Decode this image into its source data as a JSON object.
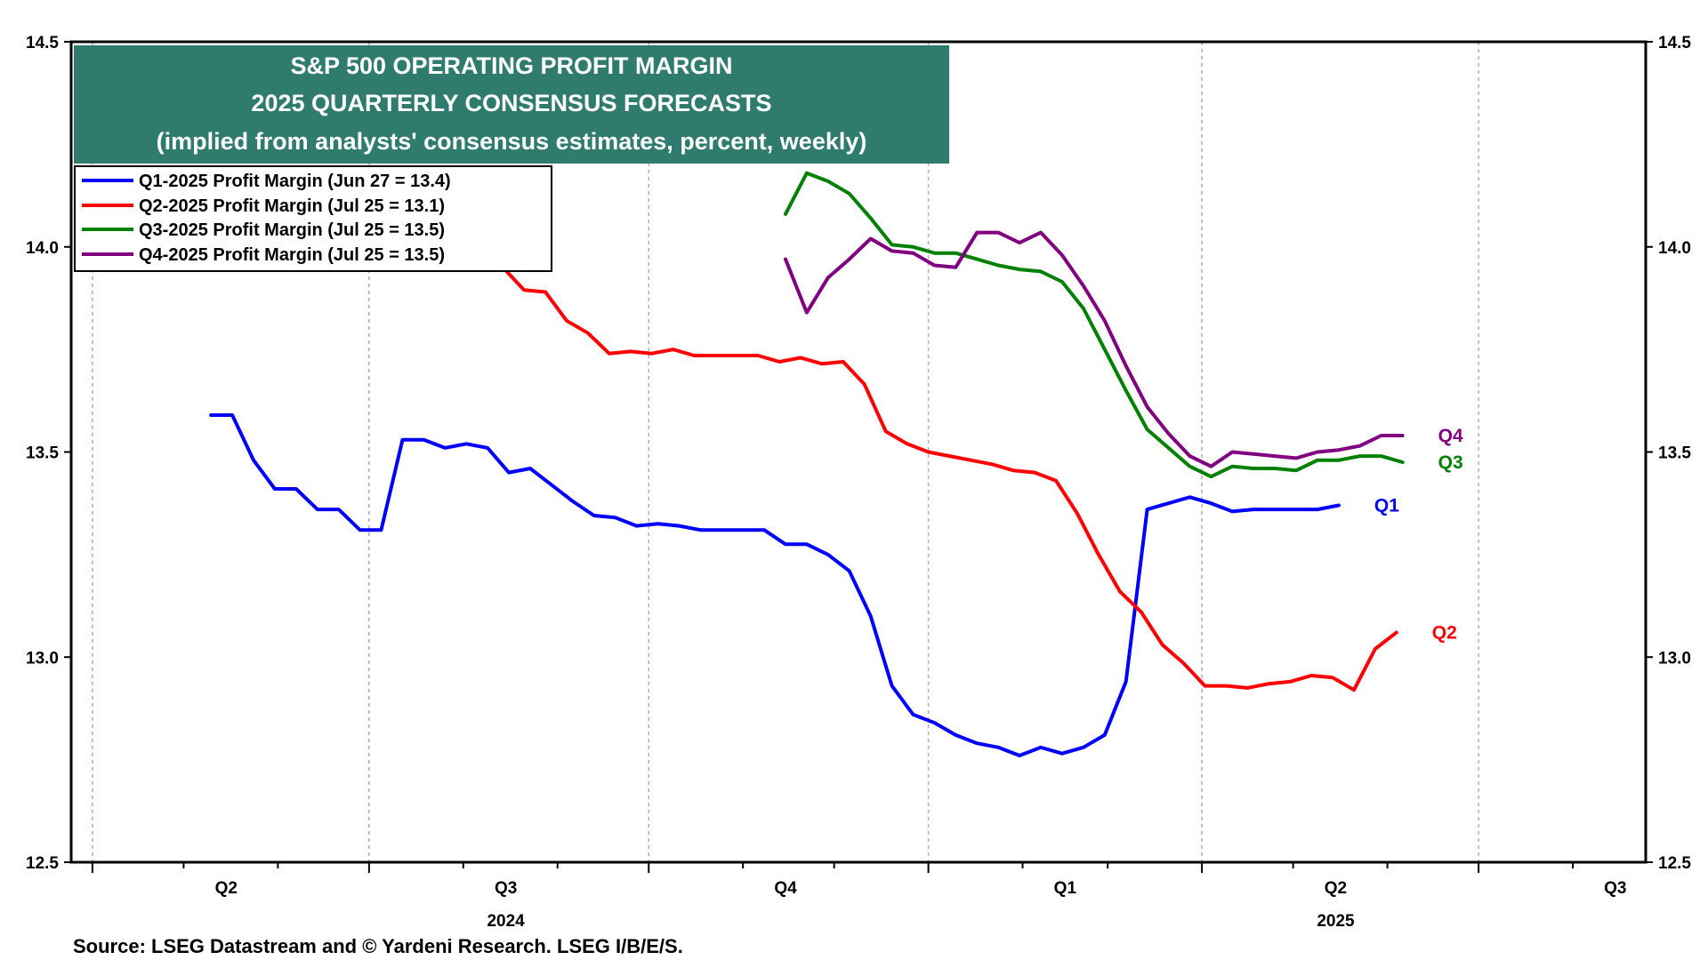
{
  "chart_data": {
    "type": "line",
    "title_lines": [
      "S&P 500 OPERATING PROFIT MARGIN",
      "2025 QUARTERLY CONSENSUS FORECASTS",
      "(implied from analysts' consensus estimates, percent, weekly)"
    ],
    "source": "Source: LSEG Datastream and © Yardeni Research. LSEG I/B/E/S.",
    "ylim": [
      12.5,
      14.5
    ],
    "yticks": [
      "12.5",
      "13.0",
      "13.5",
      "14.0",
      "14.5"
    ],
    "y_axis_both_sides": true,
    "grid": "vertical dashed",
    "legend_placement": "top-left",
    "x_quarter_labels": [
      {
        "label": "Q2",
        "x": "2024-04-01"
      },
      {
        "label": "Q3",
        "x": "2024-07-01"
      },
      {
        "label": "Q4",
        "x": "2024-10-01"
      },
      {
        "label": "Q1",
        "x": "2025-01-01"
      },
      {
        "label": "Q2",
        "x": "2025-04-01"
      },
      {
        "label": "Q3",
        "x": "2025-07-01"
      }
    ],
    "x_year_labels": [
      {
        "label": "2024",
        "x": "2024-07-01"
      },
      {
        "label": "2025",
        "x": "2025-04-01"
      }
    ],
    "x_range": [
      "2024-03-25",
      "2025-08-25"
    ],
    "series": [
      {
        "name": "Q1-2025 Profit Margin (Jun 27 = 13.4)",
        "tag": "Q1",
        "color": "#0000ff",
        "points": [
          [
            "2024-05-10",
            13.59
          ],
          [
            "2024-05-17",
            13.59
          ],
          [
            "2024-05-24",
            13.48
          ],
          [
            "2024-05-31",
            13.41
          ],
          [
            "2024-06-07",
            13.41
          ],
          [
            "2024-06-14",
            13.36
          ],
          [
            "2024-06-21",
            13.36
          ],
          [
            "2024-06-28",
            13.31
          ],
          [
            "2024-07-05",
            13.31
          ],
          [
            "2024-07-12",
            13.53
          ],
          [
            "2024-07-19",
            13.53
          ],
          [
            "2024-07-26",
            13.51
          ],
          [
            "2024-08-02",
            13.52
          ],
          [
            "2024-08-09",
            13.51
          ],
          [
            "2024-08-16",
            13.45
          ],
          [
            "2024-08-23",
            13.46
          ],
          [
            "2024-08-30",
            13.42
          ],
          [
            "2024-09-06",
            13.38
          ],
          [
            "2024-09-13",
            13.345
          ],
          [
            "2024-09-20",
            13.34
          ],
          [
            "2024-09-27",
            13.32
          ],
          [
            "2024-10-04",
            13.325
          ],
          [
            "2024-10-11",
            13.32
          ],
          [
            "2024-10-18",
            13.31
          ],
          [
            "2024-10-25",
            13.31
          ],
          [
            "2024-11-01",
            13.31
          ],
          [
            "2024-11-08",
            13.31
          ],
          [
            "2024-11-15",
            13.275
          ],
          [
            "2024-11-22",
            13.275
          ],
          [
            "2024-11-29",
            13.25
          ],
          [
            "2024-12-06",
            13.21
          ],
          [
            "2024-12-13",
            13.1
          ],
          [
            "2024-12-20",
            12.93
          ],
          [
            "2024-12-27",
            12.86
          ],
          [
            "2025-01-03",
            12.84
          ],
          [
            "2025-01-10",
            12.81
          ],
          [
            "2025-01-17",
            12.79
          ],
          [
            "2025-01-24",
            12.78
          ],
          [
            "2025-01-31",
            12.76
          ],
          [
            "2025-02-07",
            12.78
          ],
          [
            "2025-02-14",
            12.765
          ],
          [
            "2025-02-21",
            12.78
          ],
          [
            "2025-02-28",
            12.81
          ],
          [
            "2025-03-07",
            12.94
          ],
          [
            "2025-03-14",
            13.36
          ],
          [
            "2025-03-21",
            13.375
          ],
          [
            "2025-03-28",
            13.39
          ],
          [
            "2025-04-04",
            13.375
          ],
          [
            "2025-04-11",
            13.355
          ],
          [
            "2025-04-18",
            13.36
          ],
          [
            "2025-04-25",
            13.36
          ],
          [
            "2025-05-02",
            13.36
          ],
          [
            "2025-05-09",
            13.36
          ],
          [
            "2025-05-16",
            13.37
          ]
        ]
      },
      {
        "name": "Q2-2025 Profit Margin (Jul 25 = 13.1)",
        "tag": "Q2",
        "color": "#ff0000",
        "points": [
          [
            "2024-07-24",
            14.06
          ],
          [
            "2024-07-31",
            14.02
          ],
          [
            "2024-08-07",
            13.98
          ],
          [
            "2024-08-14",
            13.95
          ],
          [
            "2024-08-21",
            13.895
          ],
          [
            "2024-08-28",
            13.89
          ],
          [
            "2024-09-04",
            13.82
          ],
          [
            "2024-09-11",
            13.79
          ],
          [
            "2024-09-18",
            13.74
          ],
          [
            "2024-09-25",
            13.745
          ],
          [
            "2024-10-02",
            13.74
          ],
          [
            "2024-10-09",
            13.75
          ],
          [
            "2024-10-16",
            13.735
          ],
          [
            "2024-10-23",
            13.735
          ],
          [
            "2024-10-30",
            13.735
          ],
          [
            "2024-11-06",
            13.735
          ],
          [
            "2024-11-13",
            13.72
          ],
          [
            "2024-11-20",
            13.73
          ],
          [
            "2024-11-27",
            13.715
          ],
          [
            "2024-12-04",
            13.72
          ],
          [
            "2024-12-11",
            13.665
          ],
          [
            "2024-12-18",
            13.55
          ],
          [
            "2024-12-25",
            13.52
          ],
          [
            "2025-01-01",
            13.5
          ],
          [
            "2025-01-08",
            13.49
          ],
          [
            "2025-01-15",
            13.48
          ],
          [
            "2025-01-22",
            13.47
          ],
          [
            "2025-01-29",
            13.455
          ],
          [
            "2025-02-05",
            13.45
          ],
          [
            "2025-02-12",
            13.43
          ],
          [
            "2025-02-19",
            13.35
          ],
          [
            "2025-02-26",
            13.25
          ],
          [
            "2025-03-05",
            13.16
          ],
          [
            "2025-03-12",
            13.11
          ],
          [
            "2025-03-19",
            13.03
          ],
          [
            "2025-03-26",
            12.985
          ],
          [
            "2025-04-02",
            12.93
          ],
          [
            "2025-04-09",
            12.93
          ],
          [
            "2025-04-16",
            12.925
          ],
          [
            "2025-04-23",
            12.935
          ],
          [
            "2025-04-30",
            12.94
          ],
          [
            "2025-05-07",
            12.955
          ],
          [
            "2025-05-14",
            12.95
          ],
          [
            "2025-05-21",
            12.92
          ],
          [
            "2025-05-28",
            13.02
          ],
          [
            "2025-06-04",
            13.06
          ]
        ]
      },
      {
        "name": "Q3-2025 Profit Margin (Jul 25 = 13.5)",
        "tag": "Q3",
        "color": "#008000",
        "points": [
          [
            "2024-11-15",
            14.08
          ],
          [
            "2024-11-22",
            14.18
          ],
          [
            "2024-11-29",
            14.16
          ],
          [
            "2024-12-06",
            14.13
          ],
          [
            "2024-12-13",
            14.07
          ],
          [
            "2024-12-20",
            14.005
          ],
          [
            "2024-12-27",
            14.0
          ],
          [
            "2025-01-03",
            13.985
          ],
          [
            "2025-01-10",
            13.985
          ],
          [
            "2025-01-17",
            13.97
          ],
          [
            "2025-01-24",
            13.955
          ],
          [
            "2025-01-31",
            13.945
          ],
          [
            "2025-02-07",
            13.94
          ],
          [
            "2025-02-14",
            13.915
          ],
          [
            "2025-02-21",
            13.85
          ],
          [
            "2025-02-28",
            13.75
          ],
          [
            "2025-03-07",
            13.65
          ],
          [
            "2025-03-14",
            13.555
          ],
          [
            "2025-03-21",
            13.51
          ],
          [
            "2025-03-28",
            13.465
          ],
          [
            "2025-04-04",
            13.44
          ],
          [
            "2025-04-11",
            13.465
          ],
          [
            "2025-04-18",
            13.46
          ],
          [
            "2025-04-25",
            13.46
          ],
          [
            "2025-05-02",
            13.455
          ],
          [
            "2025-05-09",
            13.48
          ],
          [
            "2025-05-16",
            13.48
          ],
          [
            "2025-05-23",
            13.49
          ],
          [
            "2025-05-30",
            13.49
          ],
          [
            "2025-06-06",
            13.475
          ]
        ]
      },
      {
        "name": "Q4-2025 Profit Margin (Jul 25 = 13.5)",
        "tag": "Q4",
        "color": "#800080",
        "points": [
          [
            "2024-11-15",
            13.97
          ],
          [
            "2024-11-22",
            13.84
          ],
          [
            "2024-11-29",
            13.925
          ],
          [
            "2024-12-06",
            13.97
          ],
          [
            "2024-12-13",
            14.02
          ],
          [
            "2024-12-20",
            13.99
          ],
          [
            "2024-12-27",
            13.985
          ],
          [
            "2025-01-03",
            13.955
          ],
          [
            "2025-01-10",
            13.95
          ],
          [
            "2025-01-17",
            14.035
          ],
          [
            "2025-01-24",
            14.035
          ],
          [
            "2025-01-31",
            14.01
          ],
          [
            "2025-02-07",
            14.035
          ],
          [
            "2025-02-14",
            13.98
          ],
          [
            "2025-02-21",
            13.905
          ],
          [
            "2025-02-28",
            13.82
          ],
          [
            "2025-03-07",
            13.71
          ],
          [
            "2025-03-14",
            13.61
          ],
          [
            "2025-03-21",
            13.545
          ],
          [
            "2025-03-28",
            13.49
          ],
          [
            "2025-04-04",
            13.465
          ],
          [
            "2025-04-11",
            13.5
          ],
          [
            "2025-04-18",
            13.495
          ],
          [
            "2025-04-25",
            13.49
          ],
          [
            "2025-05-02",
            13.485
          ],
          [
            "2025-05-09",
            13.5
          ],
          [
            "2025-05-16",
            13.505
          ],
          [
            "2025-05-23",
            13.515
          ],
          [
            "2025-05-30",
            13.54
          ],
          [
            "2025-06-06",
            13.54
          ]
        ]
      }
    ]
  }
}
